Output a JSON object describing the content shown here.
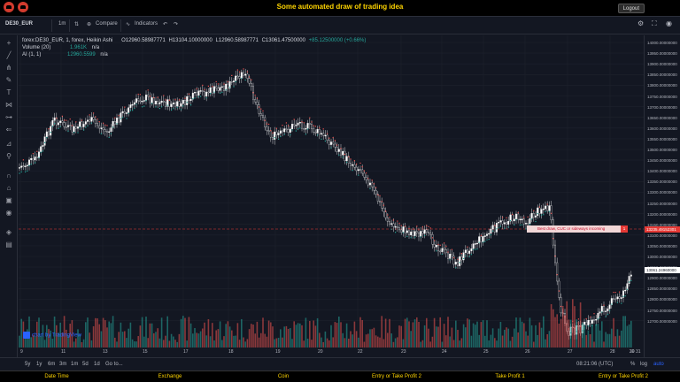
{
  "app": {
    "title": "Some automated draw of trading idea",
    "logout_label": "Logout"
  },
  "toolbar": {
    "symbol": "DE30_EUR",
    "interval": "1m",
    "compare": "Compare",
    "indicators": "Indicators"
  },
  "legend": {
    "series": "forex:DE30_EUR, 1, forex, Heikin Ashi",
    "open": "O12960.58987771",
    "high": "H13104.10000000",
    "low": "L12960.58987771",
    "close": "C13061.47500000",
    "change": "+85.12500000 (+0.66%)",
    "volume": "Volume (20)",
    "volume_val": "1.961K",
    "volume_na": "n/a",
    "ai": "AI (1, 1)",
    "ai_val": "12960.5599",
    "ai_na": "n/a"
  },
  "annotation": {
    "text": "Best draw, CUC or sideways incoming",
    "flag": "1"
  },
  "price_axis": {
    "ticks": [
      "14000.00000000",
      "13950.00000000",
      "13900.00000000",
      "13850.00000000",
      "13800.00000000",
      "13750.00000000",
      "13700.00000000",
      "13650.00000000",
      "13600.00000000",
      "13550.00000000",
      "13500.00000000",
      "13450.00000000",
      "13400.00000000",
      "13350.00000000",
      "13300.00000000",
      "13250.00000000",
      "13200.00000000",
      "13150.00000000",
      "13100.00000000",
      "13050.00000000",
      "13000.00000000",
      "12950.00000000",
      "12900.00000000",
      "12850.00000000",
      "12800.00000000",
      "12750.00000000",
      "12700.00000000"
    ],
    "current_label": "13061.24960000",
    "marker_label": "13235.49152301"
  },
  "time_axis": {
    "ticks": [
      "9",
      "11",
      "13",
      "15",
      "17",
      "18",
      "19",
      "20",
      "22",
      "23",
      "24",
      "25",
      "26",
      "27",
      "28",
      "29",
      "30"
    ],
    "end_tick": "31"
  },
  "bottom_bar": {
    "ranges": [
      "5y",
      "1y",
      "6m",
      "3m",
      "1m",
      "5d",
      "1d",
      "Go to..."
    ],
    "clock": "08:21:06 (UTC)",
    "pct": "%",
    "log": "log",
    "auto": "auto"
  },
  "watermark": "chart by TradingView",
  "columns": [
    "Date Time",
    "Exchange",
    "Coin",
    "Entry or Take Profit 2",
    "Take Profit 1",
    "Entry or Take Profit 2"
  ],
  "colors": {
    "up": "#26a69a",
    "down": "#ef5350",
    "accent": "#ffd500",
    "background": "#131722"
  }
}
